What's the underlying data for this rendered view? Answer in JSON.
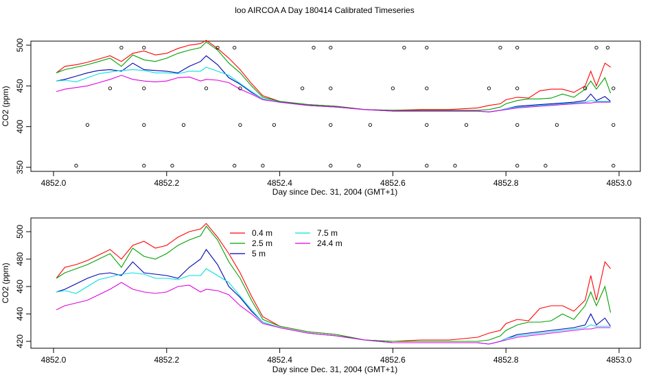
{
  "title": "loo AIRCOA A  Day 180414  Calibrated Timeseries",
  "colors": {
    "s0_4": "#ff0000",
    "s2_5": "#00a000",
    "s5": "#0000b0",
    "s7_5": "#00e0e0",
    "s24_4": "#e000e0",
    "axis": "#000000"
  },
  "chart_data": [
    {
      "type": "line",
      "xlabel": "Day since Dec. 31, 2004 (GMT+1)",
      "ylabel": "CO2 (ppm)",
      "xlim": [
        4852.0,
        4853.0
      ],
      "ylim": [
        345,
        505
      ],
      "xticks": [
        "4852.0",
        "4852.2",
        "4852.4",
        "4852.6",
        "4852.8",
        "4853.0"
      ],
      "yticks": [
        "350",
        "400",
        "450",
        "500"
      ],
      "grid": false,
      "legend": "none",
      "series": [
        {
          "color_key": "s0_4",
          "values": [
            [
              4852.005,
              466
            ],
            [
              4852.02,
              474
            ],
            [
              4852.04,
              476
            ],
            [
              4852.06,
              479
            ],
            [
              4852.08,
              483
            ],
            [
              4852.1,
              487
            ],
            [
              4852.12,
              480
            ],
            [
              4852.14,
              490
            ],
            [
              4852.16,
              493
            ],
            [
              4852.18,
              488
            ],
            [
              4852.2,
              490
            ],
            [
              4852.22,
              496
            ],
            [
              4852.24,
              500
            ],
            [
              4852.26,
              502
            ],
            [
              4852.27,
              506
            ],
            [
              4852.29,
              496
            ],
            [
              4852.31,
              484
            ],
            [
              4852.33,
              470
            ],
            [
              4852.35,
              453
            ],
            [
              4852.37,
              438
            ],
            [
              4852.4,
              431
            ],
            [
              4852.45,
              427
            ],
            [
              4852.5,
              425
            ],
            [
              4852.55,
              421
            ],
            [
              4852.6,
              420
            ],
            [
              4852.65,
              421
            ],
            [
              4852.7,
              421
            ],
            [
              4852.75,
              423
            ],
            [
              4852.77,
              426
            ],
            [
              4852.79,
              428
            ],
            [
              4852.8,
              433
            ],
            [
              4852.82,
              436
            ],
            [
              4852.84,
              435
            ],
            [
              4852.86,
              444
            ],
            [
              4852.88,
              446
            ],
            [
              4852.9,
              446
            ],
            [
              4852.92,
              442
            ],
            [
              4852.94,
              450
            ],
            [
              4852.95,
              468
            ],
            [
              4852.96,
              450
            ],
            [
              4852.975,
              478
            ],
            [
              4852.985,
              473
            ]
          ]
        },
        {
          "color_key": "s2_5",
          "values": [
            [
              4852.005,
              466
            ],
            [
              4852.02,
              470
            ],
            [
              4852.04,
              473
            ],
            [
              4852.06,
              476
            ],
            [
              4852.08,
              480
            ],
            [
              4852.1,
              484
            ],
            [
              4852.12,
              474
            ],
            [
              4852.14,
              488
            ],
            [
              4852.16,
              482
            ],
            [
              4852.18,
              480
            ],
            [
              4852.2,
              484
            ],
            [
              4852.22,
              490
            ],
            [
              4852.24,
              494
            ],
            [
              4852.26,
              497
            ],
            [
              4852.27,
              504
            ],
            [
              4852.29,
              494
            ],
            [
              4852.31,
              478
            ],
            [
              4852.33,
              466
            ],
            [
              4852.35,
              450
            ],
            [
              4852.37,
              436
            ],
            [
              4852.4,
              431
            ],
            [
              4852.45,
              427
            ],
            [
              4852.5,
              425
            ],
            [
              4852.55,
              421
            ],
            [
              4852.6,
              420
            ],
            [
              4852.65,
              420
            ],
            [
              4852.7,
              420
            ],
            [
              4852.75,
              420
            ],
            [
              4852.77,
              421
            ],
            [
              4852.79,
              424
            ],
            [
              4852.8,
              428
            ],
            [
              4852.82,
              432
            ],
            [
              4852.84,
              434
            ],
            [
              4852.86,
              434
            ],
            [
              4852.88,
              435
            ],
            [
              4852.9,
              440
            ],
            [
              4852.92,
              436
            ],
            [
              4852.94,
              446
            ],
            [
              4852.95,
              456
            ],
            [
              4852.96,
              446
            ],
            [
              4852.975,
              460
            ],
            [
              4852.985,
              441
            ]
          ]
        },
        {
          "color_key": "s5",
          "values": [
            [
              4852.005,
              456
            ],
            [
              4852.02,
              458
            ],
            [
              4852.04,
              462
            ],
            [
              4852.06,
              466
            ],
            [
              4852.08,
              469
            ],
            [
              4852.1,
              470
            ],
            [
              4852.12,
              468
            ],
            [
              4852.14,
              478
            ],
            [
              4852.16,
              470
            ],
            [
              4852.18,
              469
            ],
            [
              4852.2,
              468
            ],
            [
              4852.22,
              466
            ],
            [
              4852.24,
              474
            ],
            [
              4852.26,
              480
            ],
            [
              4852.27,
              487
            ],
            [
              4852.29,
              476
            ],
            [
              4852.31,
              460
            ],
            [
              4852.33,
              452
            ],
            [
              4852.35,
              442
            ],
            [
              4852.37,
              434
            ],
            [
              4852.4,
              430
            ],
            [
              4852.45,
              426
            ],
            [
              4852.5,
              424
            ],
            [
              4852.55,
              421
            ],
            [
              4852.6,
              419
            ],
            [
              4852.65,
              419
            ],
            [
              4852.7,
              419
            ],
            [
              4852.75,
              419
            ],
            [
              4852.77,
              418
            ],
            [
              4852.79,
              420
            ],
            [
              4852.8,
              422
            ],
            [
              4852.82,
              425
            ],
            [
              4852.84,
              426
            ],
            [
              4852.86,
              427
            ],
            [
              4852.88,
              428
            ],
            [
              4852.9,
              429
            ],
            [
              4852.92,
              430
            ],
            [
              4852.94,
              432
            ],
            [
              4852.95,
              440
            ],
            [
              4852.96,
              432
            ],
            [
              4852.975,
              437
            ],
            [
              4852.985,
              431
            ]
          ]
        },
        {
          "color_key": "s7_5",
          "values": [
            [
              4852.005,
              456
            ],
            [
              4852.02,
              457
            ],
            [
              4852.04,
              455
            ],
            [
              4852.06,
              460
            ],
            [
              4852.08,
              465
            ],
            [
              4852.1,
              467
            ],
            [
              4852.12,
              469
            ],
            [
              4852.14,
              470
            ],
            [
              4852.16,
              469
            ],
            [
              4852.18,
              466
            ],
            [
              4852.2,
              466
            ],
            [
              4852.22,
              465
            ],
            [
              4852.24,
              468
            ],
            [
              4852.26,
              468
            ],
            [
              4852.27,
              473
            ],
            [
              4852.29,
              468
            ],
            [
              4852.31,
              463
            ],
            [
              4852.33,
              453
            ],
            [
              4852.35,
              443
            ],
            [
              4852.37,
              434
            ],
            [
              4852.4,
              430
            ],
            [
              4852.45,
              426
            ],
            [
              4852.5,
              424
            ],
            [
              4852.55,
              421
            ],
            [
              4852.6,
              419
            ],
            [
              4852.65,
              419
            ],
            [
              4852.7,
              419
            ],
            [
              4852.75,
              419
            ],
            [
              4852.77,
              418
            ],
            [
              4852.79,
              420
            ],
            [
              4852.8,
              422
            ],
            [
              4852.82,
              424
            ],
            [
              4852.84,
              425
            ],
            [
              4852.86,
              426
            ],
            [
              4852.88,
              427
            ],
            [
              4852.9,
              428
            ],
            [
              4852.92,
              429
            ],
            [
              4852.94,
              430
            ],
            [
              4852.95,
              432
            ],
            [
              4852.96,
              431
            ],
            [
              4852.975,
              431
            ],
            [
              4852.985,
              431
            ]
          ]
        },
        {
          "color_key": "s24_4",
          "values": [
            [
              4852.005,
              443
            ],
            [
              4852.02,
              446
            ],
            [
              4852.04,
              448
            ],
            [
              4852.06,
              450
            ],
            [
              4852.08,
              454
            ],
            [
              4852.1,
              458
            ],
            [
              4852.12,
              463
            ],
            [
              4852.14,
              458
            ],
            [
              4852.16,
              456
            ],
            [
              4852.18,
              455
            ],
            [
              4852.2,
              456
            ],
            [
              4852.22,
              460
            ],
            [
              4852.24,
              461
            ],
            [
              4852.26,
              456
            ],
            [
              4852.27,
              458
            ],
            [
              4852.29,
              457
            ],
            [
              4852.31,
              454
            ],
            [
              4852.33,
              446
            ],
            [
              4852.35,
              440
            ],
            [
              4852.37,
              433
            ],
            [
              4852.4,
              430
            ],
            [
              4852.45,
              426
            ],
            [
              4852.5,
              424
            ],
            [
              4852.55,
              421
            ],
            [
              4852.6,
              419
            ],
            [
              4852.65,
              419
            ],
            [
              4852.7,
              419
            ],
            [
              4852.75,
              419
            ],
            [
              4852.77,
              418
            ],
            [
              4852.79,
              420
            ],
            [
              4852.8,
              421
            ],
            [
              4852.82,
              423
            ],
            [
              4852.84,
              424
            ],
            [
              4852.86,
              425
            ],
            [
              4852.88,
              426
            ],
            [
              4852.9,
              427
            ],
            [
              4852.92,
              428
            ],
            [
              4852.94,
              429
            ],
            [
              4852.95,
              429
            ],
            [
              4852.96,
              430
            ],
            [
              4852.975,
              430
            ],
            [
              4852.985,
              430
            ]
          ]
        }
      ],
      "scatter": [
        [
          4852.04,
          352
        ],
        [
          4852.12,
          497
        ],
        [
          4852.16,
          352
        ],
        [
          4852.16,
          497
        ],
        [
          4852.21,
          352
        ],
        [
          4852.32,
          352
        ],
        [
          4852.37,
          352
        ],
        [
          4852.49,
          352
        ],
        [
          4852.54,
          352
        ],
        [
          4852.66,
          352
        ],
        [
          4852.71,
          352
        ],
        [
          4852.82,
          352
        ],
        [
          4852.87,
          352
        ],
        [
          4852.99,
          352
        ],
        [
          4852.06,
          402
        ],
        [
          4852.16,
          402
        ],
        [
          4852.23,
          402
        ],
        [
          4852.33,
          402
        ],
        [
          4852.39,
          402
        ],
        [
          4852.49,
          402
        ],
        [
          4852.56,
          402
        ],
        [
          4852.66,
          402
        ],
        [
          4852.73,
          402
        ],
        [
          4852.82,
          402
        ],
        [
          4852.89,
          402
        ],
        [
          4852.99,
          402
        ],
        [
          4852.1,
          447
        ],
        [
          4852.16,
          447
        ],
        [
          4852.27,
          447
        ],
        [
          4852.33,
          447
        ],
        [
          4852.44,
          447
        ],
        [
          4852.49,
          447
        ],
        [
          4852.6,
          447
        ],
        [
          4852.66,
          447
        ],
        [
          4852.77,
          447
        ],
        [
          4852.82,
          447
        ],
        [
          4852.94,
          447
        ],
        [
          4852.99,
          447
        ],
        [
          4852.29,
          497
        ],
        [
          4852.32,
          497
        ],
        [
          4852.46,
          497
        ],
        [
          4852.49,
          497
        ],
        [
          4852.62,
          497
        ],
        [
          4852.66,
          497
        ],
        [
          4852.79,
          497
        ],
        [
          4852.82,
          497
        ],
        [
          4852.96,
          497
        ],
        [
          4852.98,
          497
        ]
      ]
    },
    {
      "type": "line",
      "xlabel": "Day since Dec. 31, 2004 (GMT+1)",
      "ylabel": "CO2 (ppm)",
      "xlim": [
        4852.0,
        4853.0
      ],
      "ylim": [
        415,
        510
      ],
      "xticks": [
        "4852.0",
        "4852.2",
        "4852.4",
        "4852.6",
        "4852.8",
        "4853.0"
      ],
      "yticks": [
        "420",
        "440",
        "460",
        "480",
        "500"
      ],
      "grid": false,
      "legend": "top-left",
      "series": [
        {
          "name": "0.4 m",
          "color_key": "s0_4",
          "ref": 0
        },
        {
          "name": "2.5 m",
          "color_key": "s2_5",
          "ref": 1
        },
        {
          "name": "5 m",
          "color_key": "s5",
          "ref": 2
        },
        {
          "name": "7.5 m",
          "color_key": "s7_5",
          "ref": 3
        },
        {
          "name": "24.4 m",
          "color_key": "s24_4",
          "ref": 4
        }
      ]
    }
  ]
}
